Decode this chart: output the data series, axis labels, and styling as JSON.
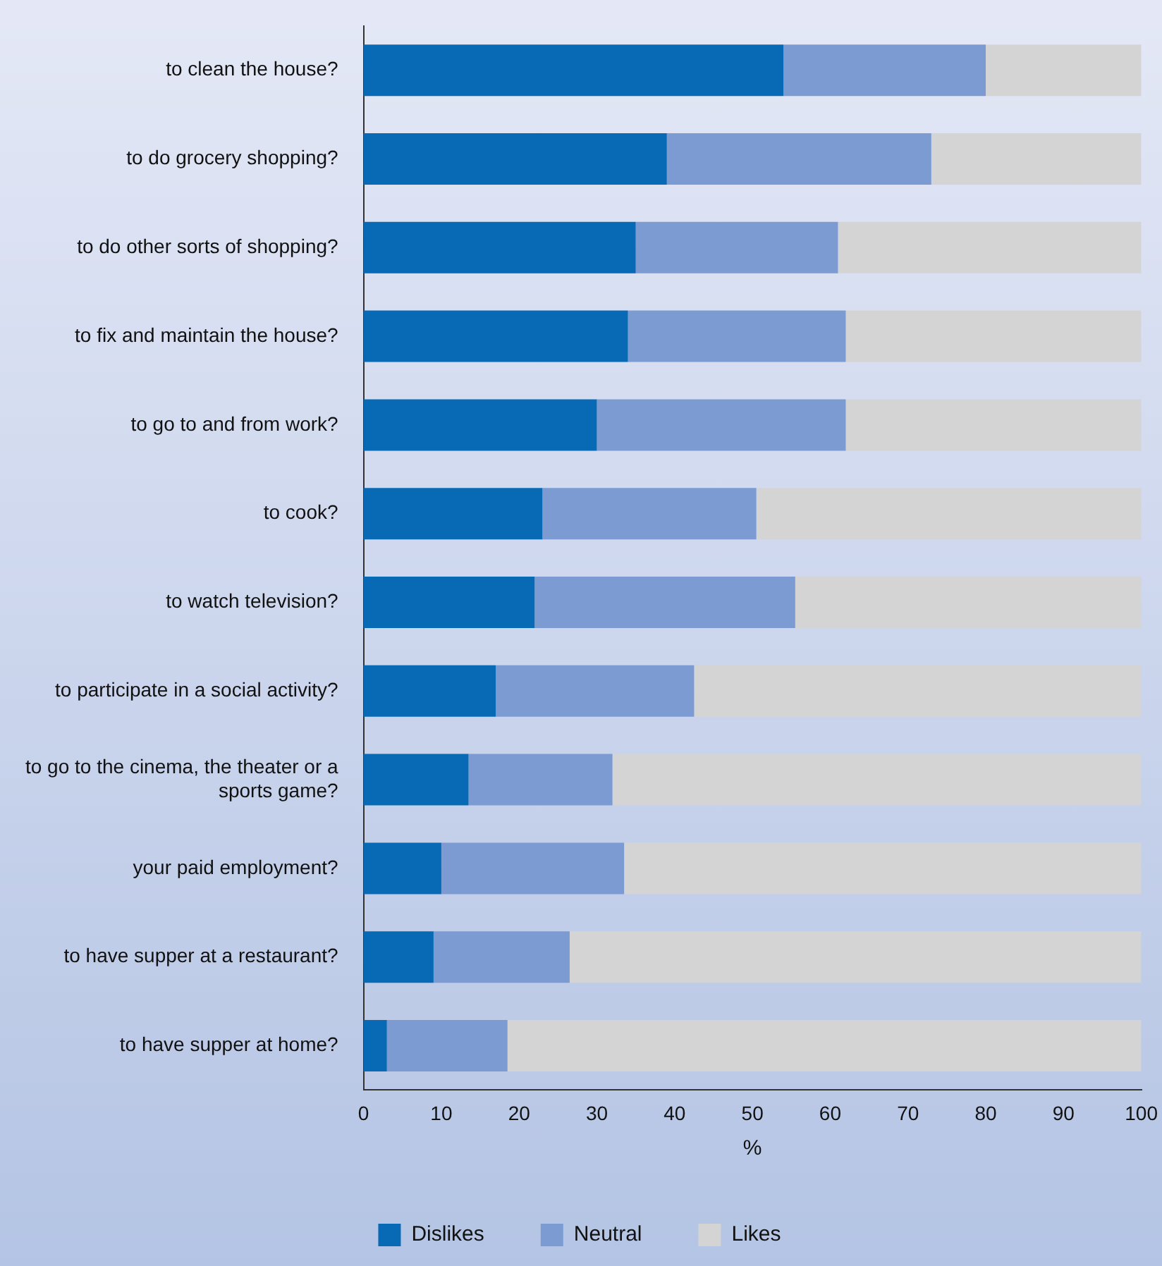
{
  "chart_data": {
    "type": "bar",
    "orientation": "horizontal",
    "stacked": true,
    "categories": [
      "to clean the house?",
      "to do grocery shopping?",
      "to do other sorts of shopping?",
      "to fix and maintain the house?",
      "to go to and from work?",
      "to cook?",
      "to watch television?",
      "to participate in a social activity?",
      "to go to the cinema, the theater or a sports game?",
      "your paid employment?",
      "to have supper at a restaurant?",
      "to have supper at home?"
    ],
    "series": [
      {
        "name": "Dislikes",
        "color": "#0869b4",
        "values": [
          54,
          39,
          35,
          34,
          30,
          23,
          22,
          17,
          13.5,
          10,
          9,
          3
        ]
      },
      {
        "name": "Neutral",
        "color": "#7b9bd2",
        "values": [
          26,
          34,
          26,
          28,
          32,
          27.5,
          33.5,
          25.5,
          18.5,
          23.5,
          17.5,
          15.5
        ]
      },
      {
        "name": "Likes",
        "color": "#d4d4d4",
        "values": [
          20,
          27,
          39,
          38,
          38,
          49.5,
          44.5,
          57.5,
          68,
          66.5,
          73.5,
          81.5
        ]
      }
    ],
    "xlim": [
      0,
      100
    ],
    "xticks": [
      0,
      10,
      20,
      30,
      40,
      50,
      60,
      70,
      80,
      90,
      100
    ],
    "xlabel": "%",
    "legend": "bottom",
    "grid": false
  }
}
